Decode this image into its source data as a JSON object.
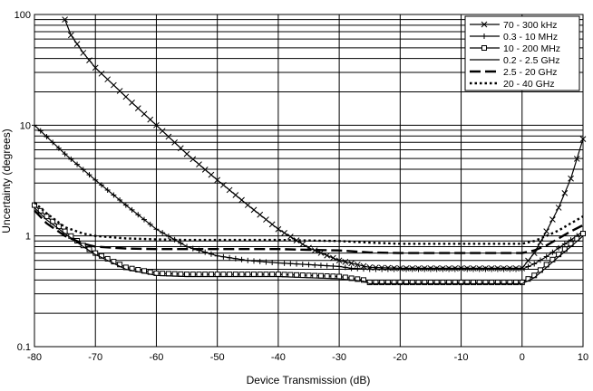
{
  "chart_data": {
    "type": "line",
    "xlabel": "Device Transmission (dB)",
    "ylabel": "Uncertainty (degrees)",
    "xlim": [
      -80,
      10
    ],
    "ylim": [
      0.1,
      100
    ],
    "yscale": "log",
    "x_ticks": [
      "-80",
      "-70",
      "-60",
      "-50",
      "-40",
      "-30",
      "-20",
      "-10",
      "0",
      "10"
    ],
    "y_ticks": [
      "0.1",
      "1",
      "10",
      "100"
    ],
    "grid": true,
    "legend_position": "top-right",
    "series": [
      {
        "name": "70 - 300 kHz",
        "style": "solid-x-markers",
        "x": [
          -75,
          -74,
          -72,
          -70,
          -67,
          -64,
          -60,
          -55,
          -50,
          -45,
          -40,
          -35,
          -30,
          -27,
          -25,
          -20,
          -15,
          -10,
          -5,
          0,
          2,
          4,
          6,
          8,
          10
        ],
        "y": [
          90,
          65,
          45,
          33,
          23,
          16,
          10,
          5.5,
          3.2,
          1.9,
          1.15,
          0.78,
          0.6,
          0.55,
          0.52,
          0.51,
          0.51,
          0.51,
          0.51,
          0.51,
          0.7,
          1.1,
          1.8,
          3.3,
          7.5
        ]
      },
      {
        "name": "0.3 - 10 MHz",
        "style": "solid-plus-markers",
        "x": [
          -80,
          -75,
          -70,
          -65,
          -60,
          -55,
          -50,
          -45,
          -40,
          -35,
          -30,
          -28,
          -25,
          -20,
          -15,
          -10,
          -5,
          0,
          2,
          4,
          6,
          8,
          10
        ],
        "y": [
          10,
          5.5,
          3.2,
          1.9,
          1.15,
          0.8,
          0.66,
          0.6,
          0.57,
          0.55,
          0.53,
          0.51,
          0.5,
          0.5,
          0.5,
          0.5,
          0.5,
          0.5,
          0.56,
          0.65,
          0.78,
          0.92,
          1.1
        ]
      },
      {
        "name": "10 - 200 MHz",
        "style": "solid-square-markers",
        "x": [
          -80,
          -78,
          -75,
          -72,
          -70,
          -65,
          -60,
          -55,
          -50,
          -45,
          -40,
          -35,
          -30,
          -26,
          -25,
          -20,
          -15,
          -10,
          -5,
          0,
          2,
          4,
          6,
          8,
          10
        ],
        "y": [
          1.9,
          1.5,
          1.1,
          0.82,
          0.7,
          0.52,
          0.46,
          0.45,
          0.45,
          0.45,
          0.45,
          0.44,
          0.43,
          0.4,
          0.38,
          0.38,
          0.38,
          0.38,
          0.38,
          0.38,
          0.44,
          0.55,
          0.68,
          0.85,
          1.05
        ]
      },
      {
        "name": "0.2 - 2.5 GHz",
        "style": "solid-thin",
        "x": [
          -80,
          -78,
          -75,
          -72,
          -70,
          -65,
          -60,
          -55,
          -50,
          -45,
          -40,
          -35,
          -30,
          -26,
          -25,
          -20,
          -15,
          -10,
          -5,
          0,
          2,
          4,
          6,
          8,
          10
        ],
        "y": [
          1.8,
          1.4,
          1.05,
          0.8,
          0.68,
          0.5,
          0.44,
          0.43,
          0.43,
          0.43,
          0.43,
          0.42,
          0.41,
          0.39,
          0.37,
          0.37,
          0.37,
          0.37,
          0.37,
          0.37,
          0.42,
          0.52,
          0.65,
          0.8,
          1.0
        ]
      },
      {
        "name": "2.5 - 20 GHz",
        "style": "long-dash",
        "x": [
          -80,
          -78,
          -75,
          -72,
          -70,
          -65,
          -60,
          -55,
          -50,
          -45,
          -40,
          -35,
          -30,
          -25,
          -20,
          -15,
          -10,
          -5,
          0,
          2,
          4,
          6,
          8,
          10
        ],
        "y": [
          1.7,
          1.3,
          1.0,
          0.85,
          0.8,
          0.77,
          0.76,
          0.76,
          0.76,
          0.76,
          0.76,
          0.75,
          0.74,
          0.71,
          0.7,
          0.7,
          0.7,
          0.7,
          0.7,
          0.74,
          0.82,
          0.95,
          1.1,
          1.25
        ]
      },
      {
        "name": "20 - 40 GHz",
        "style": "dotted",
        "x": [
          -80,
          -78,
          -75,
          -72,
          -70,
          -65,
          -60,
          -55,
          -50,
          -45,
          -40,
          -35,
          -30,
          -25,
          -20,
          -15,
          -10,
          -5,
          0,
          2,
          4,
          6,
          8,
          10
        ],
        "y": [
          2.0,
          1.6,
          1.2,
          1.05,
          1.0,
          0.95,
          0.93,
          0.92,
          0.92,
          0.92,
          0.92,
          0.91,
          0.9,
          0.87,
          0.85,
          0.85,
          0.85,
          0.85,
          0.85,
          0.9,
          1.0,
          1.12,
          1.3,
          1.5
        ]
      }
    ]
  }
}
